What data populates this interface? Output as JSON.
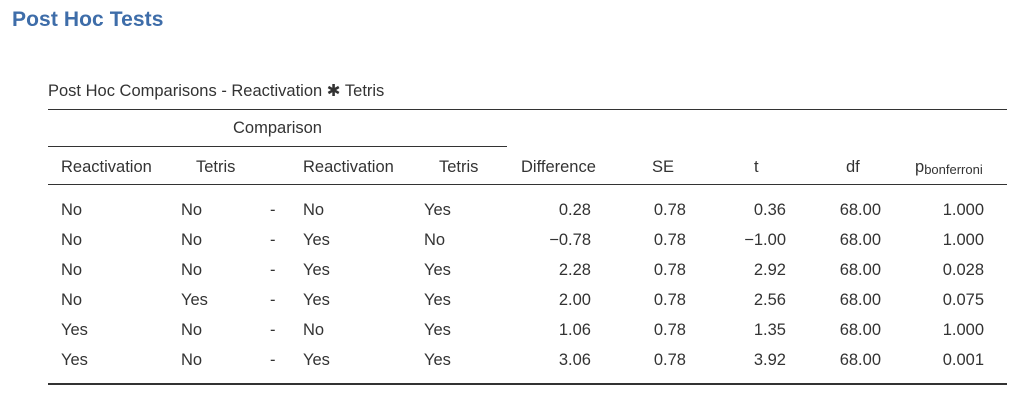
{
  "section_title": "Post Hoc Tests",
  "table": {
    "caption": "Post Hoc Comparisons - Reactivation ✱ Tetris",
    "spanner": "Comparison",
    "headers": {
      "reactivation_1": "Reactivation",
      "tetris_1": "Tetris",
      "reactivation_2": "Reactivation",
      "tetris_2": "Tetris",
      "difference": "Difference",
      "se": "SE",
      "t": "t",
      "df": "df",
      "p_main": "p",
      "p_sub": "bonferroni"
    },
    "rows": [
      {
        "r1": "No",
        "t1": "No",
        "sep": "-",
        "r2": "No",
        "t2": "Yes",
        "diff": "0.28",
        "se": "0.78",
        "t": "0.36",
        "df": "68.00",
        "p": "1.000"
      },
      {
        "r1": "No",
        "t1": "No",
        "sep": "-",
        "r2": "Yes",
        "t2": "No",
        "diff": "−0.78",
        "se": "0.78",
        "t": "−1.00",
        "df": "68.00",
        "p": "1.000"
      },
      {
        "r1": "No",
        "t1": "No",
        "sep": "-",
        "r2": "Yes",
        "t2": "Yes",
        "diff": "2.28",
        "se": "0.78",
        "t": "2.92",
        "df": "68.00",
        "p": "0.028"
      },
      {
        "r1": "No",
        "t1": "Yes",
        "sep": "-",
        "r2": "Yes",
        "t2": "Yes",
        "diff": "2.00",
        "se": "0.78",
        "t": "2.56",
        "df": "68.00",
        "p": "0.075"
      },
      {
        "r1": "Yes",
        "t1": "No",
        "sep": "-",
        "r2": "No",
        "t2": "Yes",
        "diff": "1.06",
        "se": "0.78",
        "t": "1.35",
        "df": "68.00",
        "p": "1.000"
      },
      {
        "r1": "Yes",
        "t1": "No",
        "sep": "-",
        "r2": "Yes",
        "t2": "Yes",
        "diff": "3.06",
        "se": "0.78",
        "t": "3.92",
        "df": "68.00",
        "p": "0.001"
      }
    ]
  }
}
